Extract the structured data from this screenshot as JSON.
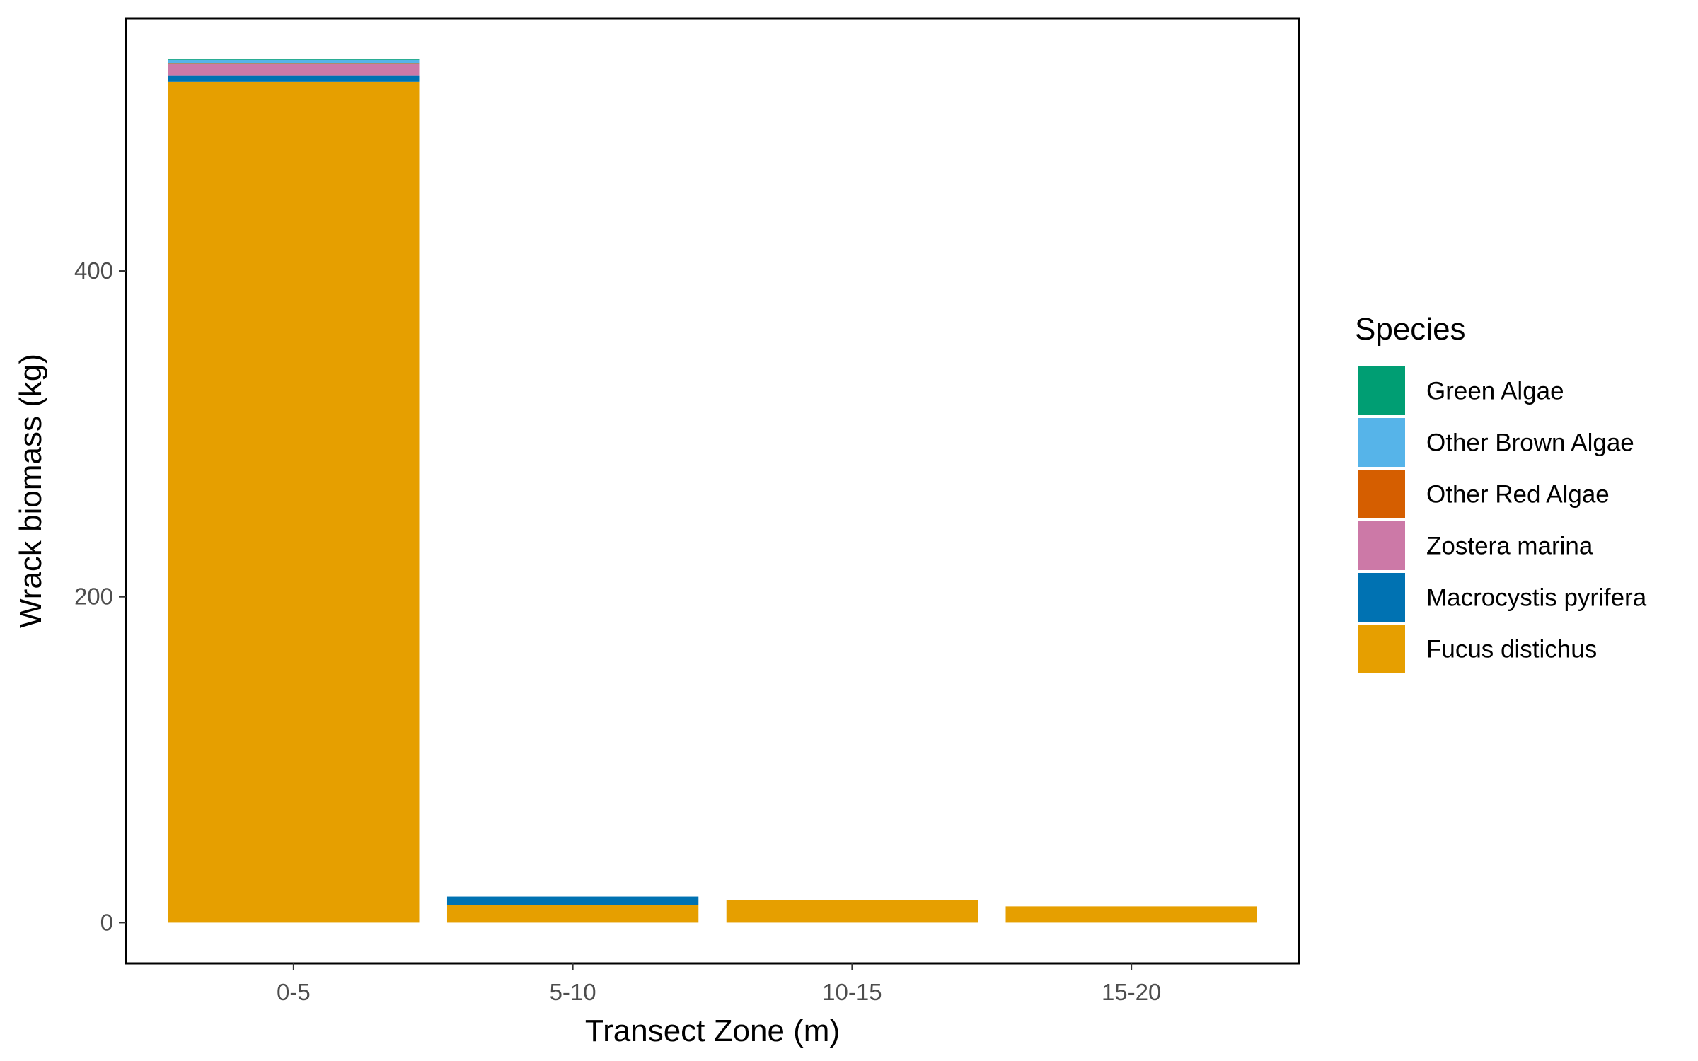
{
  "chart_data": {
    "type": "bar",
    "stacked": true,
    "xlabel": "Transect Zone (m)",
    "ylabel": "Wrack biomass (kg)",
    "categories": [
      "0-5",
      "5-10",
      "10-15",
      "15-20"
    ],
    "ylim": [
      -25,
      555
    ],
    "yticks": [
      0,
      200,
      400
    ],
    "grid": false,
    "legend": {
      "title": "Species",
      "position": "right"
    },
    "series": [
      {
        "name": "Fucus distichus",
        "color": "#E69F00",
        "values": [
          516,
          11,
          14,
          10
        ]
      },
      {
        "name": "Macrocystis pyrifera",
        "color": "#0072B2",
        "values": [
          4,
          5,
          0,
          0
        ]
      },
      {
        "name": "Zostera marina",
        "color": "#CC79A7",
        "values": [
          7,
          0,
          0,
          0
        ]
      },
      {
        "name": "Other Red Algae",
        "color": "#D55E00",
        "values": [
          0.5,
          0,
          0,
          0
        ]
      },
      {
        "name": "Other Brown Algae",
        "color": "#56B4E9",
        "values": [
          2,
          0,
          0,
          0
        ]
      },
      {
        "name": "Green Algae",
        "color": "#009E73",
        "values": [
          0.5,
          0,
          0,
          0
        ]
      }
    ],
    "legend_order": [
      "Green Algae",
      "Other Brown Algae",
      "Other Red Algae",
      "Zostera marina",
      "Macrocystis pyrifera",
      "Fucus distichus"
    ]
  }
}
